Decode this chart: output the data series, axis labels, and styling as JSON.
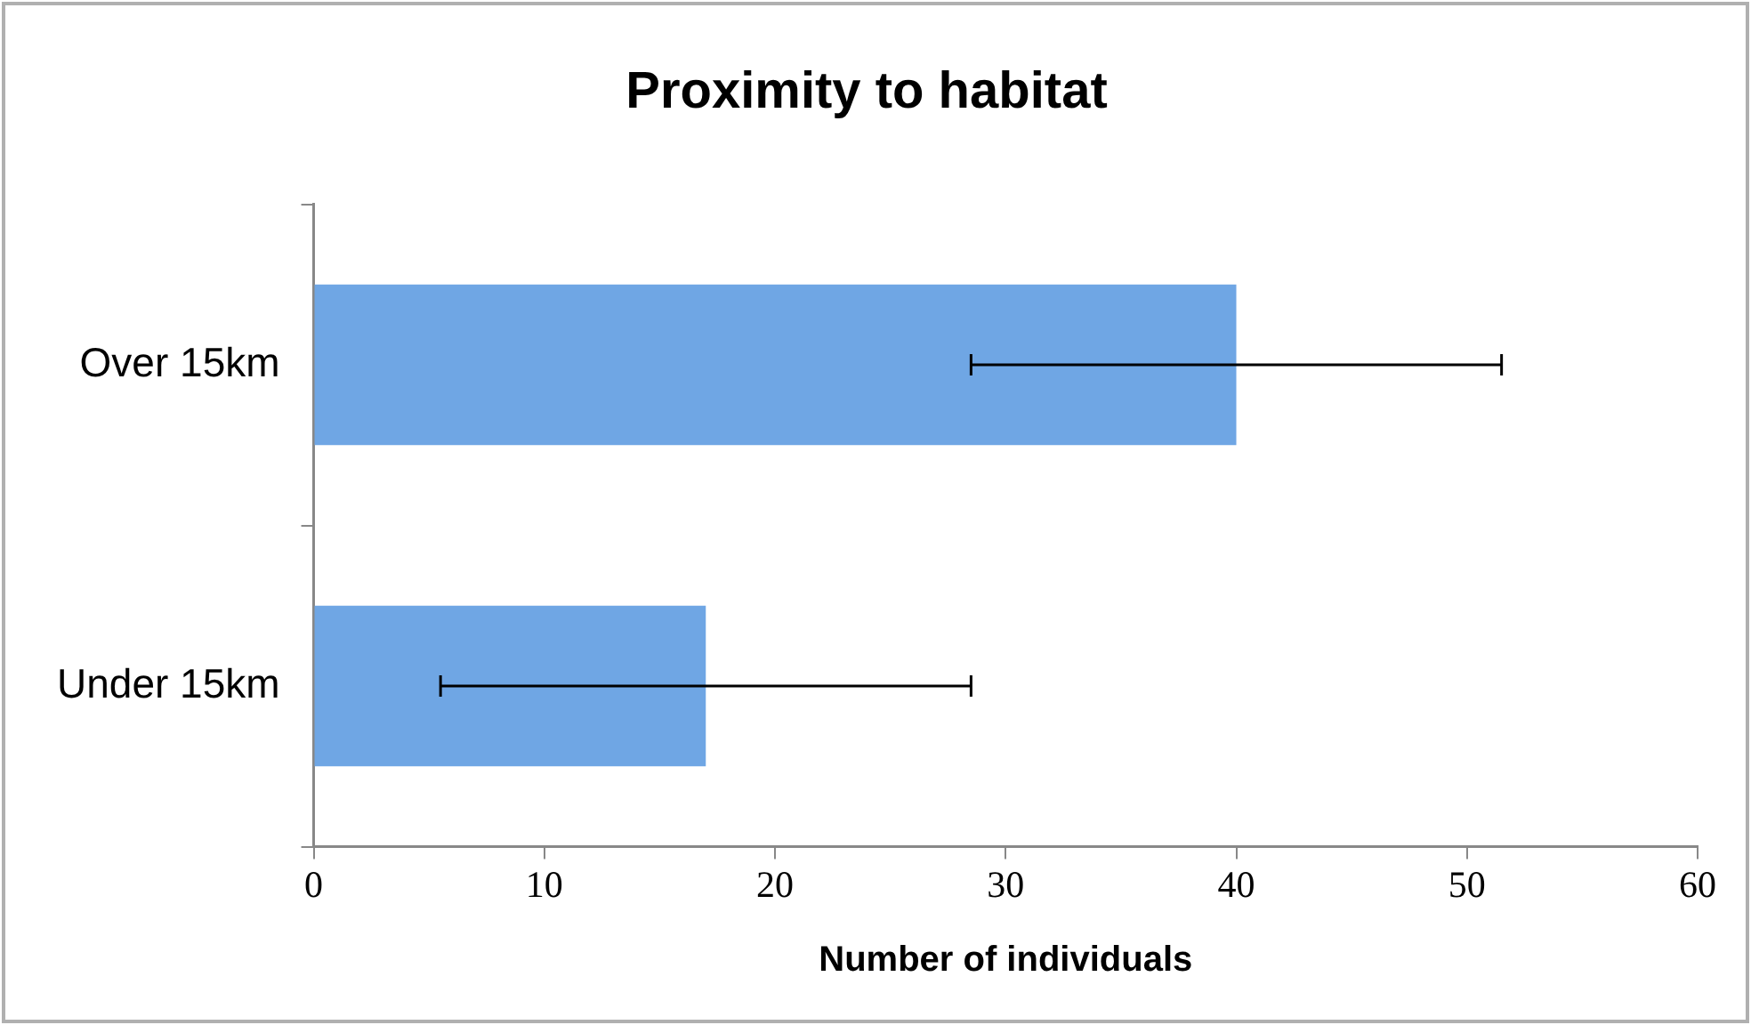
{
  "chart_data": {
    "type": "bar",
    "orientation": "horizontal",
    "title": "Proximity to habitat",
    "xlabel": "Number of individuals",
    "categories": [
      "Over 15km",
      "Under 15km"
    ],
    "values": [
      40,
      17
    ],
    "errors": [
      11.5,
      11.5
    ],
    "color": "#6fa6e4",
    "xlim": [
      0,
      60
    ],
    "xticks": [
      0,
      10,
      20,
      30,
      40,
      50,
      60
    ],
    "grid": false,
    "legend": false
  }
}
